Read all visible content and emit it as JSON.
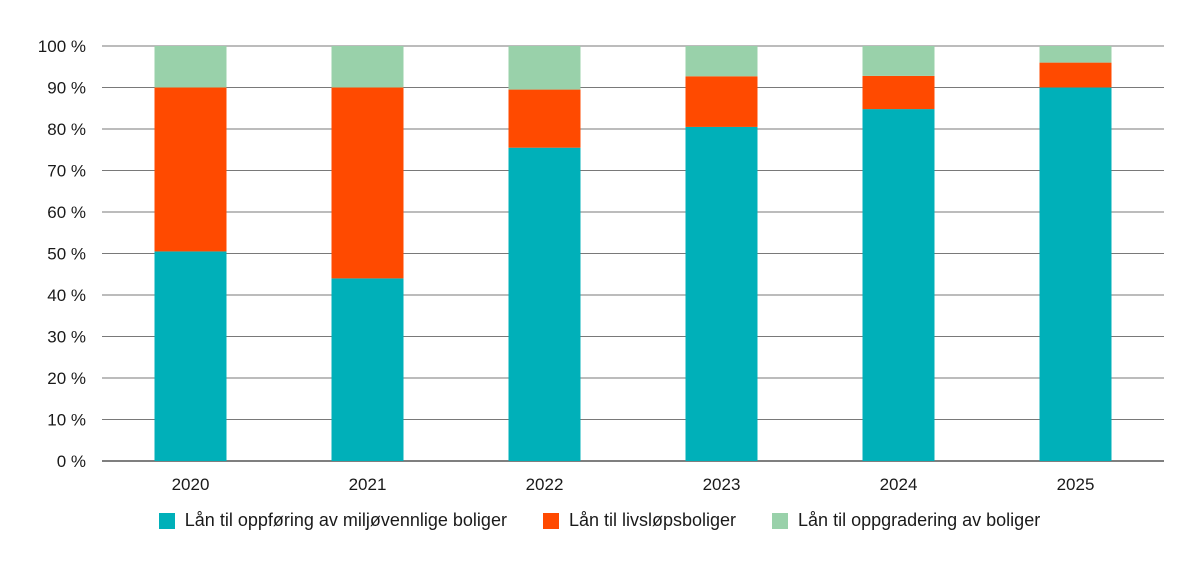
{
  "chart_data": {
    "type": "bar",
    "stacked": true,
    "title": "",
    "xlabel": "",
    "ylabel": "",
    "categories": [
      "2020",
      "2021",
      "2022",
      "2023",
      "2024",
      "2025"
    ],
    "ylim": [
      0,
      100
    ],
    "yticks": [
      "0 %",
      "10 %",
      "20 %",
      "30 %",
      "40 %",
      "50 %",
      "60 %",
      "70 %",
      "80 %",
      "90 %",
      "100 %"
    ],
    "grid": true,
    "legend_position": "bottom",
    "series": [
      {
        "name": "Lån til oppføring av miljøvennlige boliger",
        "color": "#00b0b9",
        "values": [
          50.5,
          44,
          75.5,
          80.5,
          84.8,
          90
        ]
      },
      {
        "name": "Lån til livsløpsboliger",
        "color": "#ff4a00",
        "values": [
          39.5,
          46,
          14,
          12.2,
          8,
          6
        ]
      },
      {
        "name": "Lån til oppgradering av boliger",
        "color": "#99d1aa",
        "values": [
          10,
          10,
          10.5,
          7.3,
          7.2,
          4
        ]
      }
    ]
  }
}
